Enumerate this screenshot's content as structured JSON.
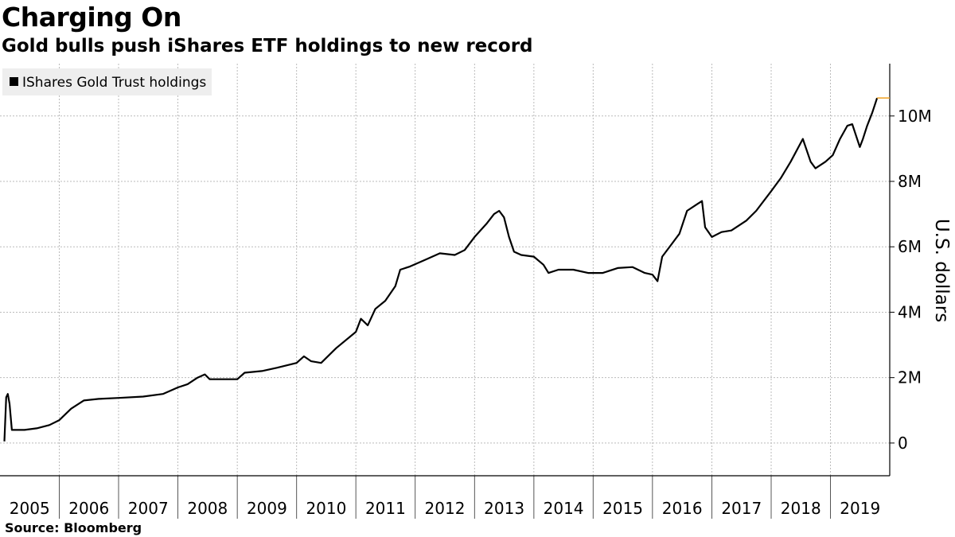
{
  "title": "Charging On",
  "subtitle": "Gold bulls push iShares ETF holdings to new record",
  "source": "Source: Bloomberg",
  "colors": {
    "line": "#000000",
    "last_value_marker": "#f0a020",
    "grid": "#bbbbbb",
    "legend_bg": "#eeeeee"
  },
  "chart_data": {
    "type": "line",
    "title": "Charging On",
    "subtitle": "Gold bulls push iShares ETF holdings to new record",
    "xlabel": "",
    "ylabel": "U.S. dollars",
    "x_tick_labels": [
      "2005",
      "2006",
      "2007",
      "2008",
      "2009",
      "2010",
      "2011",
      "2012",
      "2013",
      "2014",
      "2015",
      "2016",
      "2017",
      "2018",
      "2019"
    ],
    "y_tick_labels": [
      "0",
      "2M",
      "4M",
      "6M",
      "8M",
      "10M"
    ],
    "y_ticks": [
      0,
      2000000,
      4000000,
      6000000,
      8000000,
      10000000
    ],
    "xlim": [
      "2005-01-01",
      "2020-01-01"
    ],
    "ylim": [
      -1000000,
      11600000
    ],
    "grid": true,
    "legend_position": "top-left",
    "series": [
      {
        "name": "IShares Gold Trust holdings",
        "points": [
          [
            "2005-01-28",
            50000
          ],
          [
            "2005-02-08",
            1400000
          ],
          [
            "2005-02-18",
            1500000
          ],
          [
            "2005-03-01",
            1200000
          ],
          [
            "2005-03-15",
            400000
          ],
          [
            "2005-06-01",
            400000
          ],
          [
            "2005-08-15",
            450000
          ],
          [
            "2005-11-01",
            550000
          ],
          [
            "2006-01-01",
            700000
          ],
          [
            "2006-03-15",
            1050000
          ],
          [
            "2006-06-01",
            1300000
          ],
          [
            "2006-09-01",
            1350000
          ],
          [
            "2007-01-01",
            1380000
          ],
          [
            "2007-06-01",
            1420000
          ],
          [
            "2007-10-01",
            1500000
          ],
          [
            "2008-01-01",
            1700000
          ],
          [
            "2008-03-01",
            1800000
          ],
          [
            "2008-05-01",
            2000000
          ],
          [
            "2008-06-15",
            2100000
          ],
          [
            "2008-07-15",
            1950000
          ],
          [
            "2009-01-01",
            1950000
          ],
          [
            "2009-02-15",
            2150000
          ],
          [
            "2009-06-01",
            2200000
          ],
          [
            "2009-09-01",
            2300000
          ],
          [
            "2010-01-01",
            2450000
          ],
          [
            "2010-02-15",
            2650000
          ],
          [
            "2010-04-01",
            2500000
          ],
          [
            "2010-06-01",
            2450000
          ],
          [
            "2010-09-01",
            2900000
          ],
          [
            "2011-01-01",
            3400000
          ],
          [
            "2011-02-01",
            3800000
          ],
          [
            "2011-03-15",
            3600000
          ],
          [
            "2011-05-01",
            4100000
          ],
          [
            "2011-07-01",
            4350000
          ],
          [
            "2011-09-01",
            4800000
          ],
          [
            "2011-10-01",
            5300000
          ],
          [
            "2011-12-01",
            5400000
          ],
          [
            "2012-03-01",
            5600000
          ],
          [
            "2012-06-01",
            5800000
          ],
          [
            "2012-09-01",
            5750000
          ],
          [
            "2012-11-01",
            5900000
          ],
          [
            "2013-01-01",
            6300000
          ],
          [
            "2013-03-15",
            6700000
          ],
          [
            "2013-05-01",
            7000000
          ],
          [
            "2013-06-01",
            7100000
          ],
          [
            "2013-07-01",
            6900000
          ],
          [
            "2013-08-01",
            6300000
          ],
          [
            "2013-09-01",
            5850000
          ],
          [
            "2013-10-15",
            5750000
          ],
          [
            "2014-01-01",
            5700000
          ],
          [
            "2014-03-01",
            5450000
          ],
          [
            "2014-04-01",
            5200000
          ],
          [
            "2014-06-01",
            5300000
          ],
          [
            "2014-09-01",
            5300000
          ],
          [
            "2014-12-01",
            5200000
          ],
          [
            "2015-03-01",
            5200000
          ],
          [
            "2015-06-01",
            5350000
          ],
          [
            "2015-09-01",
            5380000
          ],
          [
            "2015-11-15",
            5200000
          ],
          [
            "2016-01-01",
            5150000
          ],
          [
            "2016-02-01",
            4950000
          ],
          [
            "2016-03-01",
            5700000
          ],
          [
            "2016-05-01",
            6100000
          ],
          [
            "2016-06-15",
            6400000
          ],
          [
            "2016-08-01",
            7100000
          ],
          [
            "2016-10-01",
            7300000
          ],
          [
            "2016-11-01",
            7400000
          ],
          [
            "2016-11-20",
            6600000
          ],
          [
            "2017-01-01",
            6300000
          ],
          [
            "2017-03-01",
            6450000
          ],
          [
            "2017-05-01",
            6500000
          ],
          [
            "2017-08-01",
            6800000
          ],
          [
            "2017-10-01",
            7100000
          ],
          [
            "2018-01-01",
            7700000
          ],
          [
            "2018-03-01",
            8100000
          ],
          [
            "2018-05-01",
            8600000
          ],
          [
            "2018-07-15",
            9300000
          ],
          [
            "2018-09-01",
            8600000
          ],
          [
            "2018-10-01",
            8400000
          ],
          [
            "2018-12-01",
            8600000
          ],
          [
            "2019-01-15",
            8800000
          ],
          [
            "2019-03-01",
            9300000
          ],
          [
            "2019-04-15",
            9700000
          ],
          [
            "2019-05-15",
            9750000
          ],
          [
            "2019-07-01",
            9050000
          ],
          [
            "2019-07-20",
            9300000
          ],
          [
            "2019-08-15",
            9700000
          ],
          [
            "2019-09-15",
            10100000
          ],
          [
            "2019-10-15",
            10550000
          ]
        ]
      }
    ],
    "last_value": [
      "2019-10-15",
      10550000
    ]
  }
}
